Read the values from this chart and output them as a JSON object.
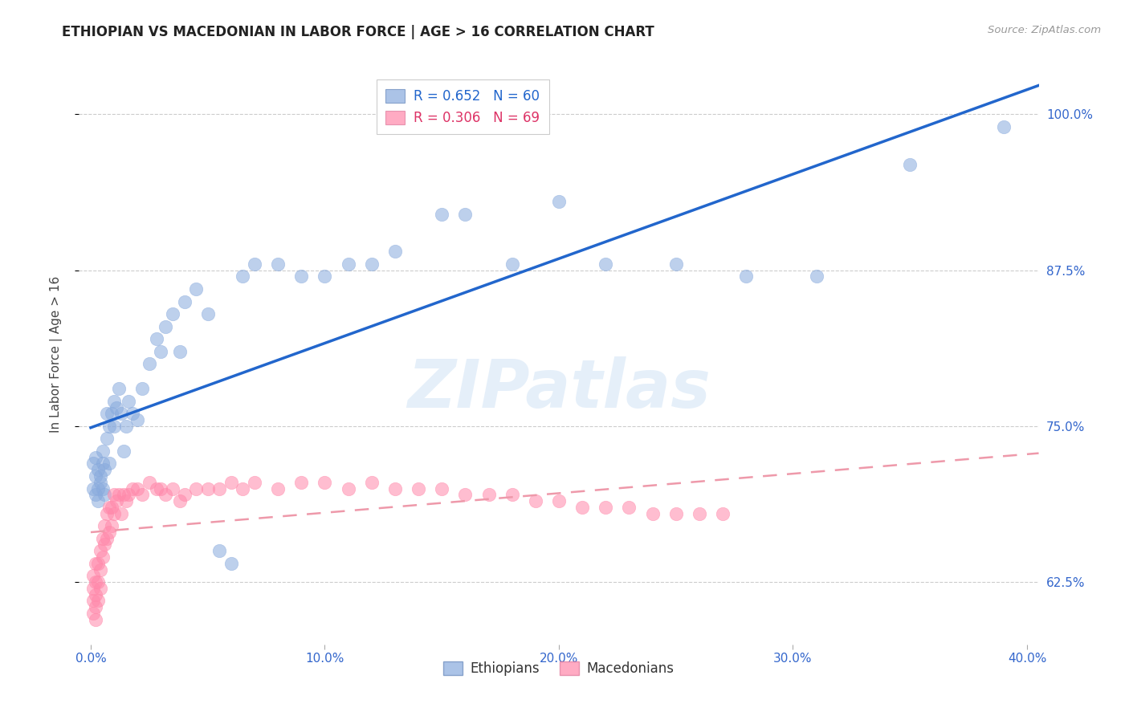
{
  "title": "ETHIOPIAN VS MACEDONIAN IN LABOR FORCE | AGE > 16 CORRELATION CHART",
  "source": "Source: ZipAtlas.com",
  "ylabel": "In Labor Force | Age > 16",
  "xlabel_ticks": [
    "0.0%",
    "10.0%",
    "20.0%",
    "30.0%",
    "40.0%"
  ],
  "xlabel_vals": [
    0.0,
    0.1,
    0.2,
    0.3,
    0.4
  ],
  "ylabel_ticks": [
    "62.5%",
    "75.0%",
    "87.5%",
    "100.0%"
  ],
  "ylabel_vals": [
    0.625,
    0.75,
    0.875,
    1.0
  ],
  "xlim": [
    -0.005,
    0.405
  ],
  "ylim": [
    0.575,
    1.04
  ],
  "watermark": "ZIPatlas",
  "legend_blue_label": "R = 0.652   N = 60",
  "legend_pink_label": "R = 0.306   N = 69",
  "blue_scatter_color": "#88AADD",
  "pink_scatter_color": "#FF88AA",
  "blue_line_color": "#2266CC",
  "pink_line_color": "#EE99AA",
  "title_color": "#222222",
  "source_color": "#999999",
  "tick_color": "#3366CC",
  "ylabel_color": "#444444",
  "grid_color": "#CCCCCC",
  "watermark_color": "#AACCEE",
  "ethiopians_x": [
    0.001,
    0.001,
    0.002,
    0.002,
    0.002,
    0.003,
    0.003,
    0.003,
    0.004,
    0.004,
    0.005,
    0.005,
    0.005,
    0.006,
    0.006,
    0.007,
    0.007,
    0.008,
    0.008,
    0.009,
    0.01,
    0.01,
    0.011,
    0.012,
    0.013,
    0.014,
    0.015,
    0.016,
    0.018,
    0.02,
    0.022,
    0.025,
    0.028,
    0.03,
    0.032,
    0.035,
    0.038,
    0.04,
    0.045,
    0.05,
    0.055,
    0.06,
    0.065,
    0.07,
    0.08,
    0.09,
    0.1,
    0.11,
    0.12,
    0.13,
    0.15,
    0.16,
    0.18,
    0.2,
    0.22,
    0.25,
    0.28,
    0.31,
    0.35,
    0.39
  ],
  "ethiopians_y": [
    0.72,
    0.7,
    0.71,
    0.695,
    0.725,
    0.7,
    0.715,
    0.69,
    0.705,
    0.71,
    0.72,
    0.7,
    0.73,
    0.715,
    0.695,
    0.76,
    0.74,
    0.75,
    0.72,
    0.76,
    0.77,
    0.75,
    0.765,
    0.78,
    0.76,
    0.73,
    0.75,
    0.77,
    0.76,
    0.755,
    0.78,
    0.8,
    0.82,
    0.81,
    0.83,
    0.84,
    0.81,
    0.85,
    0.86,
    0.84,
    0.65,
    0.64,
    0.87,
    0.88,
    0.88,
    0.87,
    0.87,
    0.88,
    0.88,
    0.89,
    0.92,
    0.92,
    0.88,
    0.93,
    0.88,
    0.88,
    0.87,
    0.87,
    0.96,
    0.99
  ],
  "macedonians_x": [
    0.001,
    0.001,
    0.001,
    0.001,
    0.002,
    0.002,
    0.002,
    0.002,
    0.002,
    0.003,
    0.003,
    0.003,
    0.004,
    0.004,
    0.004,
    0.005,
    0.005,
    0.006,
    0.006,
    0.007,
    0.007,
    0.008,
    0.008,
    0.009,
    0.009,
    0.01,
    0.01,
    0.011,
    0.012,
    0.013,
    0.014,
    0.015,
    0.016,
    0.018,
    0.02,
    0.022,
    0.025,
    0.028,
    0.03,
    0.032,
    0.035,
    0.038,
    0.04,
    0.045,
    0.05,
    0.055,
    0.06,
    0.065,
    0.07,
    0.08,
    0.09,
    0.1,
    0.11,
    0.12,
    0.13,
    0.14,
    0.15,
    0.16,
    0.17,
    0.18,
    0.19,
    0.2,
    0.21,
    0.22,
    0.23,
    0.24,
    0.25,
    0.26,
    0.27
  ],
  "macedonians_y": [
    0.63,
    0.62,
    0.61,
    0.6,
    0.64,
    0.625,
    0.615,
    0.605,
    0.595,
    0.64,
    0.625,
    0.61,
    0.65,
    0.635,
    0.62,
    0.66,
    0.645,
    0.67,
    0.655,
    0.68,
    0.66,
    0.685,
    0.665,
    0.685,
    0.67,
    0.695,
    0.68,
    0.69,
    0.695,
    0.68,
    0.695,
    0.69,
    0.695,
    0.7,
    0.7,
    0.695,
    0.705,
    0.7,
    0.7,
    0.695,
    0.7,
    0.69,
    0.695,
    0.7,
    0.7,
    0.7,
    0.705,
    0.7,
    0.705,
    0.7,
    0.705,
    0.705,
    0.7,
    0.705,
    0.7,
    0.7,
    0.7,
    0.695,
    0.695,
    0.695,
    0.69,
    0.69,
    0.685,
    0.685,
    0.685,
    0.68,
    0.68,
    0.68,
    0.68
  ]
}
